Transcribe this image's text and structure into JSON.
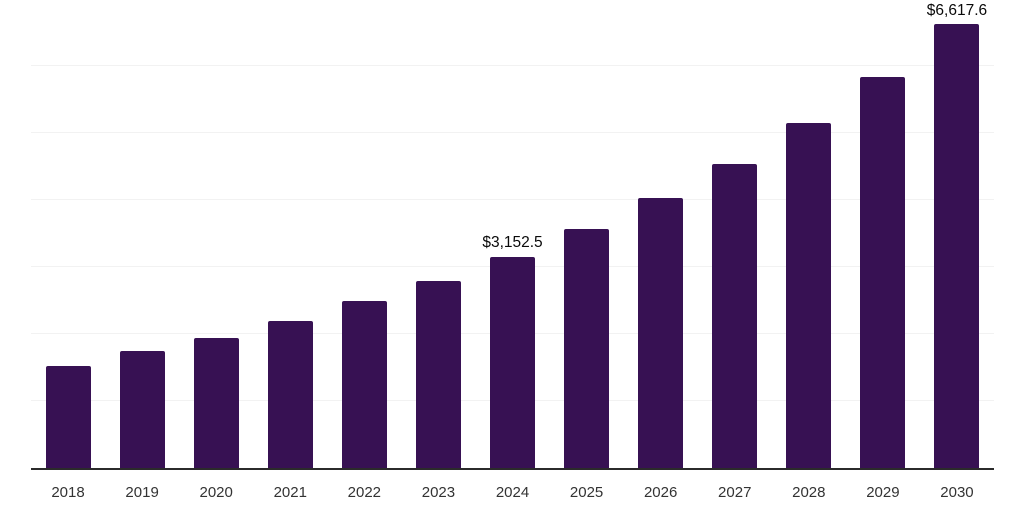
{
  "chart_data": {
    "type": "bar",
    "title": "",
    "xlabel": "",
    "ylabel": "",
    "categories": [
      "2018",
      "2019",
      "2020",
      "2021",
      "2022",
      "2023",
      "2024",
      "2025",
      "2026",
      "2027",
      "2028",
      "2029",
      "2030"
    ],
    "values": [
      1520,
      1745,
      1940,
      2190,
      2490,
      2790,
      3152.5,
      3565,
      4030,
      4540,
      5145,
      5835,
      6617.6
    ],
    "annotations": [
      {
        "category": "2024",
        "text": "$3,152.5"
      },
      {
        "category": "2030",
        "text": "$6,617.6"
      }
    ],
    "ylim": [
      0,
      7012
    ],
    "gridlines": [
      1000,
      2000,
      3000,
      4000,
      5000,
      6000,
      7000
    ],
    "grid": true,
    "legend_position": "none",
    "bar_color": "#371153",
    "axis_line_color": "#2b2b2b",
    "grid_color": "#f2f2f2",
    "tick_label_color": "#333333",
    "annotation_color": "#0a0a0a"
  }
}
